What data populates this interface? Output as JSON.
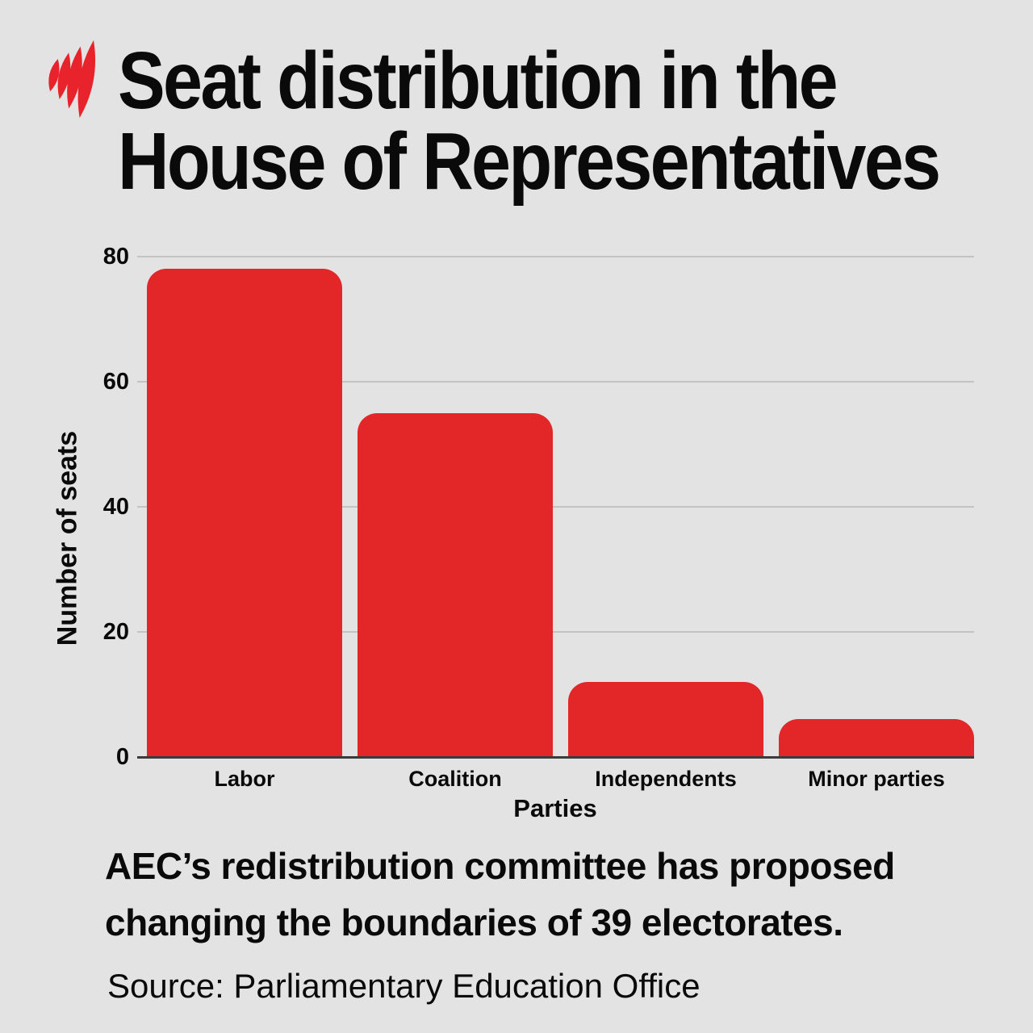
{
  "brand": {
    "logo_icon": "sbs-flame-logo"
  },
  "title": {
    "line1": "Seat distribution in the",
    "line2": "House of Representatives"
  },
  "chart_data": {
    "type": "bar",
    "title": "Seat distribution in the House of Representatives",
    "categories": [
      "Labor",
      "Coalition",
      "Independents",
      "Minor parties"
    ],
    "values": [
      78,
      55,
      12,
      6
    ],
    "xlabel": "Parties",
    "ylabel": "Number of seats",
    "ylim": [
      0,
      80
    ],
    "yticks": [
      0,
      20,
      40,
      60,
      80
    ],
    "grid": "horizontal",
    "legend": "none",
    "bar_color": "#e32728"
  },
  "caption": {
    "line1": "AEC’s redistribution committee has proposed",
    "line2": "changing the boundaries of 39 electorates."
  },
  "source": {
    "text": "Source: Parliamentary Education Office"
  },
  "colors": {
    "background": "#e3e3e3",
    "bar": "#e32728",
    "logo": "#e8232b",
    "text": "#0a0a0a",
    "gridline": "#c3c3c3",
    "axis": "#3b3b3b"
  }
}
